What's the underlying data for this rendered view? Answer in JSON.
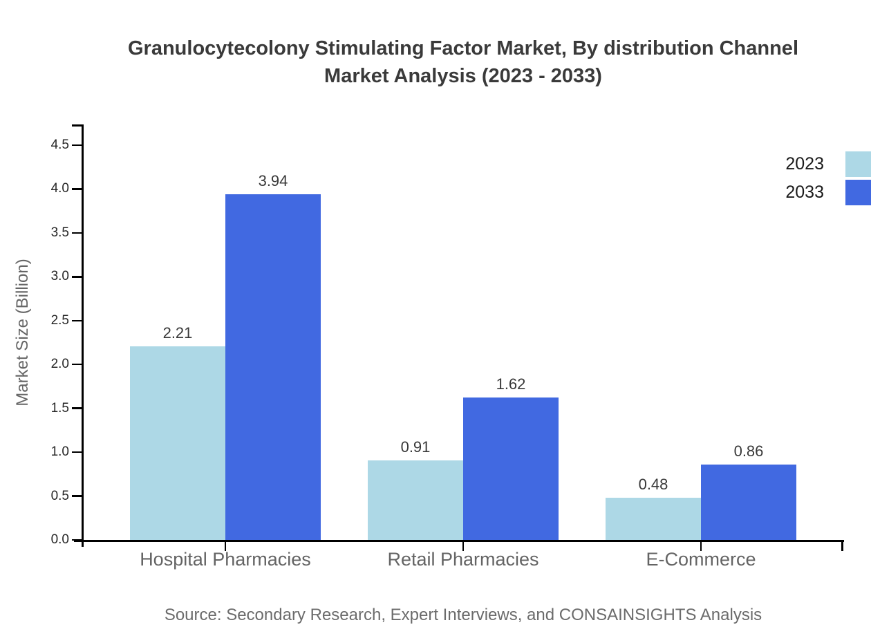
{
  "header": {
    "title_line1": "Granulocytecolony Stimulating Factor Market, By distribution Channel",
    "title_line2": "Market Analysis (2023 - 2033)"
  },
  "chart_data": {
    "type": "bar",
    "title": "Granulocytecolony Stimulating Factor Market, By distribution Channel Market Analysis (2023 - 2033)",
    "categories": [
      "Hospital Pharmacies",
      "Retail Pharmacies",
      "E-Commerce"
    ],
    "series": [
      {
        "name": "2023",
        "color": "#ADD8E6",
        "values": [
          2.21,
          0.91,
          0.48
        ]
      },
      {
        "name": "2033",
        "color": "#4169E1",
        "values": [
          3.94,
          1.62,
          0.86
        ]
      }
    ],
    "value_labels": [
      "2.21",
      "3.94",
      "0.91",
      "1.62",
      "0.48",
      "0.86"
    ],
    "xlabel": "",
    "ylabel": "Market Size (Billion)",
    "ylim": [
      0,
      4.5
    ],
    "ytick_step": 0.5,
    "ytick_labels": [
      "0.0",
      "0.5",
      "1.0",
      "1.5",
      "2.0",
      "2.5",
      "3.0",
      "3.5",
      "4.0",
      "4.5"
    ],
    "grid": false,
    "legend_position": "upper-right-outside",
    "axis_color": "#000000",
    "source": "Source: Secondary Research, Expert Interviews, and CONSAINSIGHTS Analysis"
  }
}
